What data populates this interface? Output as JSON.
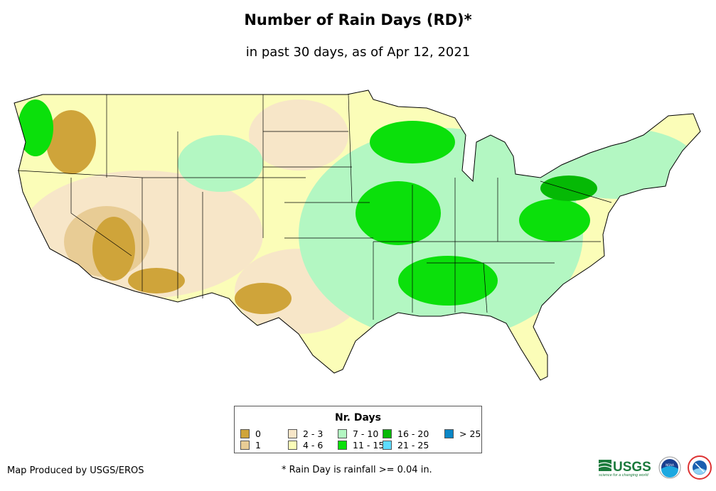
{
  "title": "Number of Rain Days (RD)*",
  "subtitle": "in past 30 days, as of Apr 12, 2021",
  "legend": {
    "title": "Nr. Days",
    "items": [
      {
        "label": "0",
        "color": "#cfa43a"
      },
      {
        "label": "1",
        "color": "#e8cc95"
      },
      {
        "label": "2 - 3",
        "color": "#f7e6c8"
      },
      {
        "label": "4 - 6",
        "color": "#fbfdb8"
      },
      {
        "label": "7 - 10",
        "color": "#b3f7c2"
      },
      {
        "label": "11 - 15",
        "color": "#0be00b"
      },
      {
        "label": "16 - 20",
        "color": "#05b905"
      },
      {
        "label": "21 - 25",
        "color": "#5ddcff"
      },
      {
        "label": "> 25",
        "color": "#0a86c6"
      }
    ]
  },
  "producer": "Map Produced by USGS/EROS",
  "footnote": "* Rain Day is rainfall >= 0.04 in.",
  "logos": {
    "usgs": "USGS",
    "usgs_tagline": "science for a changing world",
    "noaa": "NOAA",
    "nws": "NATIONAL WEATHER SERVICE"
  }
}
